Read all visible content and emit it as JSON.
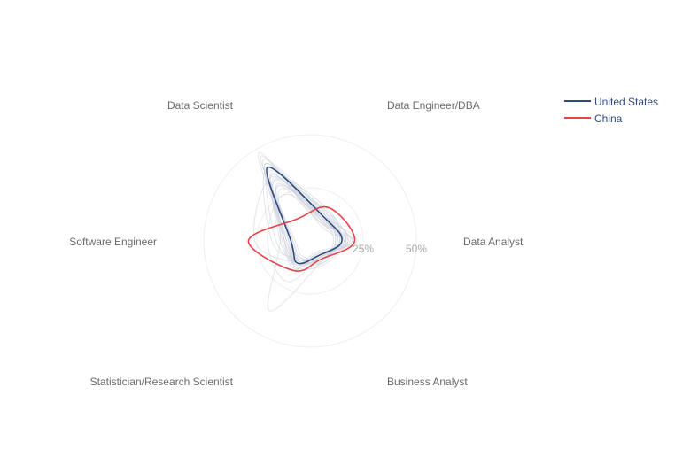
{
  "chart_data": {
    "type": "radar",
    "axes": [
      "Data Analyst",
      "Data Engineer/DBA",
      "Data Scientist",
      "Software Engineer",
      "Statistician/Research Scientist",
      "Business Analyst"
    ],
    "radial_ticks": [
      "25%",
      "50%"
    ],
    "radial_range": [
      0,
      50
    ],
    "series": [
      {
        "name": "United States",
        "color": "#2f4b7c",
        "values": [
          15,
          13,
          40,
          9,
          12,
          8
        ]
      },
      {
        "name": "China",
        "color": "#e8434b",
        "values": [
          21,
          18,
          12,
          29,
          16,
          10
        ]
      }
    ],
    "background_series": [
      [
        16,
        12,
        36,
        11,
        13,
        8
      ],
      [
        14,
        14,
        42,
        9,
        10,
        9
      ],
      [
        18,
        11,
        33,
        14,
        12,
        7
      ],
      [
        13,
        15,
        44,
        8,
        9,
        10
      ],
      [
        20,
        10,
        30,
        12,
        15,
        8
      ],
      [
        12,
        13,
        38,
        16,
        11,
        12
      ],
      [
        17,
        16,
        28,
        10,
        14,
        9
      ],
      [
        15,
        12,
        46,
        7,
        8,
        10
      ],
      [
        19,
        14,
        34,
        13,
        13,
        6
      ],
      [
        11,
        11,
        40,
        18,
        10,
        11
      ],
      [
        22,
        13,
        31,
        9,
        16,
        7
      ],
      [
        14,
        17,
        36,
        12,
        12,
        8
      ],
      [
        16,
        9,
        48,
        10,
        9,
        12
      ],
      [
        13,
        12,
        25,
        20,
        22,
        9
      ],
      [
        18,
        15,
        39,
        8,
        11,
        10
      ],
      [
        15,
        10,
        35,
        26,
        12,
        9
      ],
      [
        20,
        12,
        42,
        11,
        10,
        8
      ],
      [
        12,
        14,
        30,
        14,
        38,
        11
      ],
      [
        17,
        11,
        37,
        9,
        14,
        13
      ],
      [
        14,
        16,
        33,
        12,
        12,
        10
      ]
    ]
  }
}
